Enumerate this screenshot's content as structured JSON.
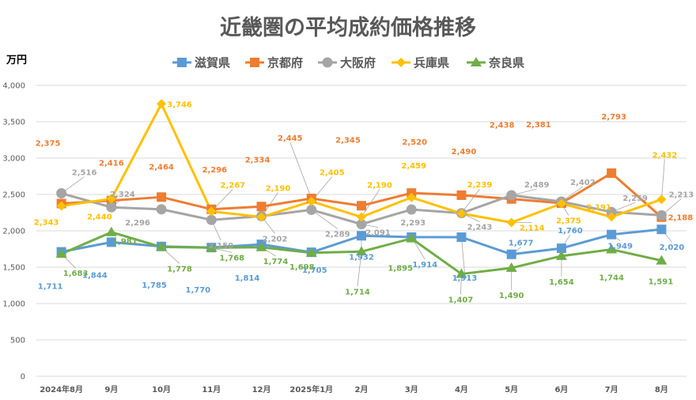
{
  "chart_data": {
    "type": "line",
    "title": "近畿圏の平均成約価格推移",
    "ylabel": "万円",
    "ylim": [
      0,
      4000
    ],
    "yticks": [
      0,
      500,
      1000,
      1500,
      2000,
      2500,
      3000,
      3500,
      4000
    ],
    "ytick_labels": [
      "0",
      "500",
      "1,000",
      "1,500",
      "2,000",
      "2,500",
      "3,000",
      "3,500",
      "4,000"
    ],
    "grid": true,
    "legend_position": "top",
    "categories": [
      "2024年8月",
      "9月",
      "10月",
      "11月",
      "12月",
      "2025年1月",
      "2月",
      "3月",
      "4月",
      "5月",
      "6月",
      "7月",
      "8月"
    ],
    "series": [
      {
        "name": "滋賀県",
        "color": "#5b9bd5",
        "marker": "square",
        "values": [
          1711,
          1844,
          1785,
          1770,
          1814,
          1705,
          1932,
          1914,
          1913,
          1677,
          1760,
          1949,
          2020
        ],
        "labels": [
          "1,711",
          "1,844",
          "1,785",
          "1,770",
          "1,814",
          "1,705",
          "1,932",
          "1,914",
          "1,913",
          "1,677",
          "1,760",
          "1,949",
          "2,020"
        ]
      },
      {
        "name": "京都府",
        "color": "#ed7d31",
        "marker": "square",
        "values": [
          2375,
          2416,
          2464,
          2296,
          2334,
          2445,
          2345,
          2520,
          2490,
          2438,
          2381,
          2793,
          2188
        ],
        "labels": [
          "2,375",
          "2,416",
          "2,464",
          "2,296",
          "2,334",
          "2,445",
          "2,345",
          "2,520",
          "2,490",
          "2,438",
          "2,381",
          "2,793",
          "2,188"
        ]
      },
      {
        "name": "大阪府",
        "color": "#a5a5a5",
        "marker": "circle",
        "values": [
          2516,
          2324,
          2296,
          2150,
          2202,
          2289,
          2091,
          2293,
          2243,
          2489,
          2402,
          2259,
          2213
        ],
        "labels": [
          "2,516",
          "2,324",
          "2,296",
          "2,150",
          "2,202",
          "2,289",
          "2,091",
          "2,293",
          "2,243",
          "2,489",
          "2,402",
          "2,259",
          "2,213"
        ]
      },
      {
        "name": "兵庫県",
        "color": "#ffc000",
        "marker": "diamond",
        "values": [
          2343,
          2440,
          3746,
          2267,
          2190,
          2405,
          2190,
          2459,
          2239,
          2114,
          2375,
          2191,
          2432
        ],
        "labels": [
          "2,343",
          "2,440",
          "3,746",
          "2,267",
          "2,190",
          "2,405",
          "2,190",
          "2,459",
          "2,239",
          "2,114",
          "2,375",
          "2,191",
          "2,432"
        ]
      },
      {
        "name": "奈良県",
        "color": "#70ad47",
        "marker": "triangle",
        "values": [
          1683,
          1981,
          1778,
          1768,
          1774,
          1698,
          1714,
          1895,
          1407,
          1490,
          1654,
          1744,
          1591
        ],
        "labels": [
          "1,683",
          "1,981",
          "1,778",
          "1,768",
          "1,774",
          "1,698",
          "1,714",
          "1,895",
          "1,407",
          "1,490",
          "1,654",
          "1,744",
          "1,591"
        ]
      }
    ]
  }
}
